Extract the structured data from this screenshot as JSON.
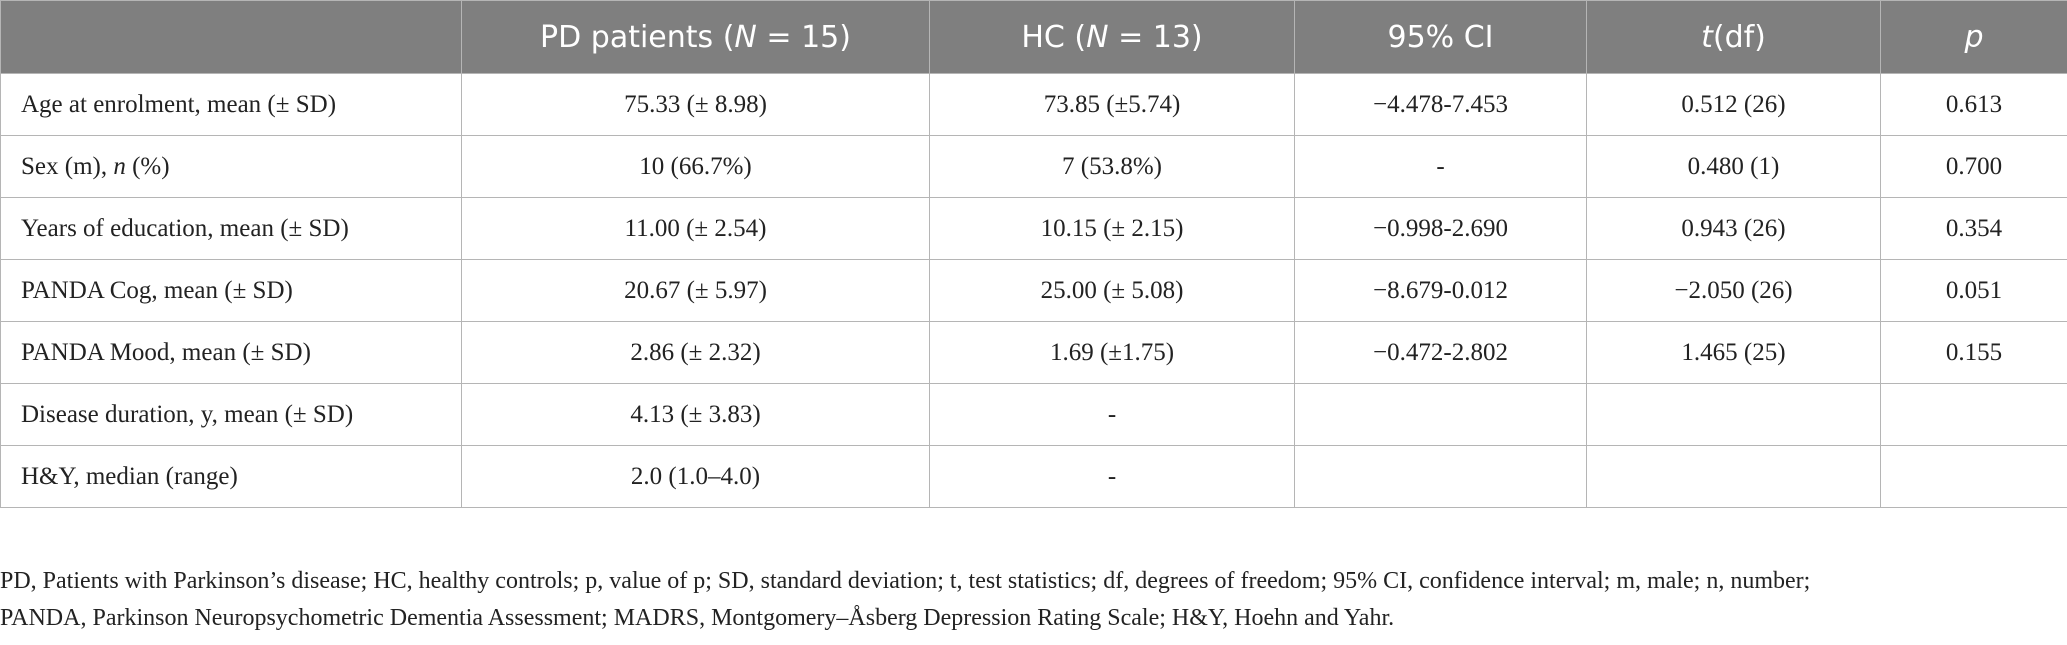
{
  "table": {
    "header": [
      null,
      [
        {
          "text": "PD patients ("
        },
        {
          "text": "N",
          "italic": true
        },
        {
          "text": " = 15)"
        }
      ],
      [
        {
          "text": "HC ("
        },
        {
          "text": "N",
          "italic": true
        },
        {
          "text": " = 13)"
        }
      ],
      [
        {
          "text": "95% CI"
        }
      ],
      [
        {
          "text": "t",
          "italic": true
        },
        {
          "text": "(df)"
        }
      ],
      [
        {
          "text": "p",
          "italic": true
        }
      ]
    ],
    "rows": [
      [
        "Age at enrolment, mean (± SD)",
        "75.33 (± 8.98)",
        "73.85 (±5.74)",
        "−4.478-7.453",
        "0.512 (26)",
        "0.613"
      ],
      [
        [
          {
            "text": "Sex (m), "
          },
          {
            "text": "n",
            "italic": true
          },
          {
            "text": " (%)"
          }
        ],
        "10 (66.7%)",
        "7 (53.8%)",
        "-",
        "0.480 (1)",
        "0.700"
      ],
      [
        "Years of education, mean (± SD)",
        "11.00 (± 2.54)",
        "10.15 (± 2.15)",
        "−0.998-2.690",
        "0.943 (26)",
        "0.354"
      ],
      [
        "PANDA Cog, mean (± SD)",
        "20.67 (± 5.97)",
        "25.00 (± 5.08)",
        "−8.679-0.012",
        "−2.050 (26)",
        "0.051"
      ],
      [
        "PANDA Mood, mean (± SD)",
        "2.86 (± 2.32)",
        "1.69 (±1.75)",
        "−0.472-2.802",
        "1.465 (25)",
        "0.155"
      ],
      [
        "Disease duration, y, mean (± SD)",
        "4.13 (± 3.83)",
        "-",
        null,
        null,
        null
      ],
      [
        "H&Y, median (range)",
        "2.0 (1.0–4.0)",
        "-",
        null,
        null,
        null
      ]
    ]
  },
  "footnote": [
    "PD, Patients with Parkinson’s disease; HC, healthy controls; p, value of p; SD, standard deviation; t, test statistics; df, degrees of freedom; 95% CI, confidence interval; m, male; n, number;",
    "PANDA, Parkinson Neuropsychometric Dementia Assessment; MADRS, Montgomery–Åsberg Depression Rating Scale; H&Y, Hoehn and Yahr."
  ]
}
